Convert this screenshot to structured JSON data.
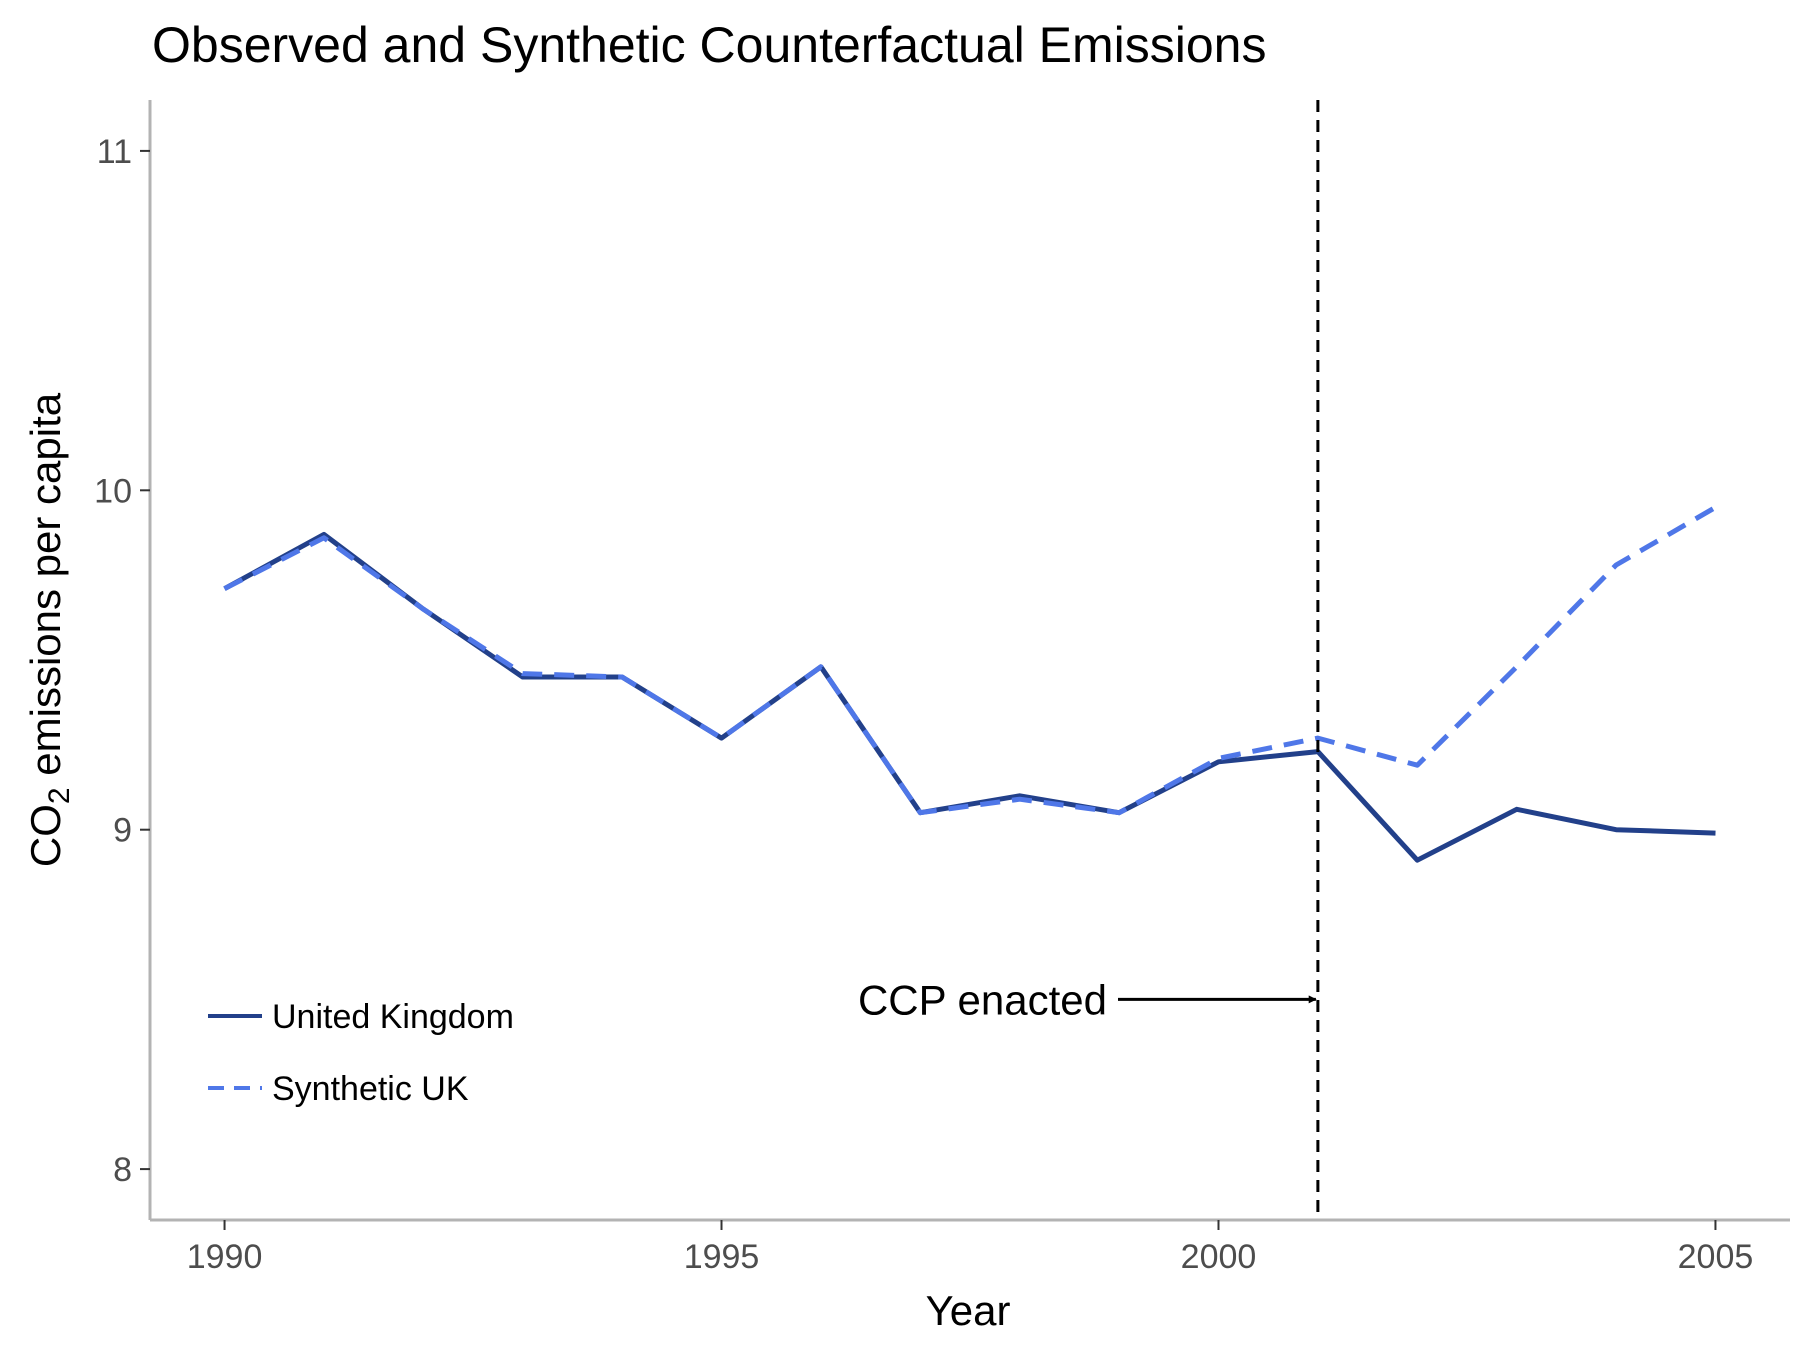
{
  "chart_data": {
    "type": "line",
    "title": "Observed and Synthetic Counterfactual Emissions",
    "xlabel": "Year",
    "ylabel": {
      "prefix": "CO",
      "subscript": "2",
      "suffix": " emissions per capita"
    },
    "xlim": [
      1989.25,
      2005.75
    ],
    "ylim": [
      7.85,
      11.15
    ],
    "x_ticks": [
      1990,
      1995,
      2000,
      2005
    ],
    "y_ticks": [
      8,
      9,
      10,
      11
    ],
    "grid": false,
    "legend_position": "bottom-left",
    "x": [
      1990,
      1991,
      1992,
      1993,
      1994,
      1995,
      1996,
      1997,
      1998,
      1999,
      2000,
      2001,
      2002,
      2003,
      2004,
      2005
    ],
    "series": [
      {
        "name": "United Kingdom",
        "style": "solid",
        "color": "#22408a",
        "values": [
          9.71,
          9.87,
          9.65,
          9.45,
          9.45,
          9.27,
          9.48,
          9.05,
          9.1,
          9.05,
          9.2,
          9.23,
          8.91,
          9.06,
          9.0,
          8.99
        ]
      },
      {
        "name": "Synthetic UK",
        "style": "dashed",
        "color": "#4f77e8",
        "values": [
          9.71,
          9.86,
          9.65,
          9.46,
          9.45,
          9.27,
          9.48,
          9.05,
          9.09,
          9.05,
          9.21,
          9.27,
          9.19,
          9.48,
          9.78,
          9.95
        ]
      }
    ],
    "annotations": [
      {
        "type": "vline",
        "x": 2001,
        "style": "dashed",
        "color": "#000000"
      },
      {
        "type": "arrow",
        "label": "CCP enacted",
        "x_end": 2001,
        "y": 8.5,
        "color": "#000000"
      }
    ]
  }
}
